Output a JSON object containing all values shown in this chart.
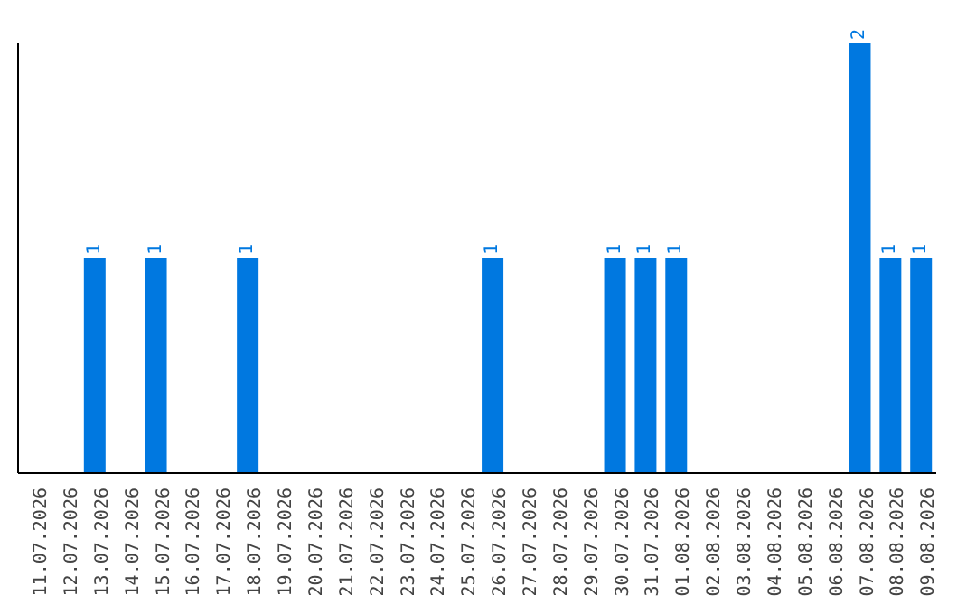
{
  "chart_data": {
    "type": "bar",
    "categories": [
      "11.07.2026",
      "12.07.2026",
      "13.07.2026",
      "14.07.2026",
      "15.07.2026",
      "16.07.2026",
      "17.07.2026",
      "18.07.2026",
      "19.07.2026",
      "20.07.2026",
      "21.07.2026",
      "22.07.2026",
      "23.07.2026",
      "24.07.2026",
      "25.07.2026",
      "26.07.2026",
      "27.07.2026",
      "28.07.2026",
      "29.07.2026",
      "30.07.2026",
      "31.07.2026",
      "01.08.2026",
      "02.08.2026",
      "03.08.2026",
      "04.08.2026",
      "05.08.2026",
      "06.08.2026",
      "07.08.2026",
      "08.08.2026",
      "09.08.2026"
    ],
    "values": [
      0,
      0,
      1,
      0,
      1,
      0,
      0,
      1,
      0,
      0,
      0,
      0,
      0,
      0,
      0,
      1,
      0,
      0,
      0,
      1,
      1,
      1,
      0,
      0,
      0,
      0,
      0,
      2,
      1,
      1
    ],
    "value_labels": [
      null,
      null,
      "1",
      null,
      "1",
      null,
      null,
      "1",
      null,
      null,
      null,
      null,
      null,
      null,
      null,
      "1",
      null,
      null,
      null,
      "1",
      "1",
      "1",
      null,
      null,
      null,
      null,
      null,
      "2",
      "1",
      "1"
    ],
    "color": "#0078e0"
  }
}
